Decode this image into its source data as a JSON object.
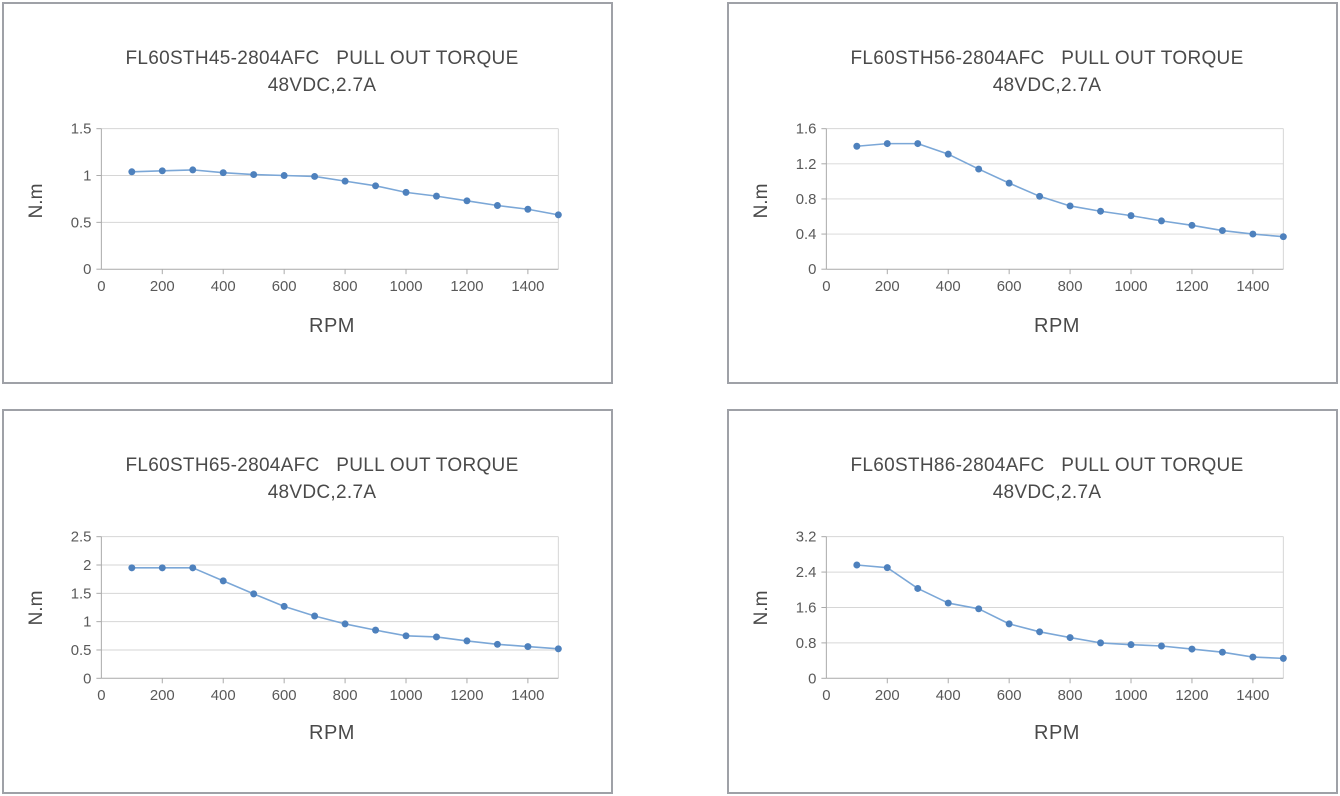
{
  "style": {
    "line_color": "#7BA7D7",
    "marker_color": "#4E81BD",
    "grid_color": "#D6D6D6",
    "axis_color": "#A9A9A9",
    "text_color": "#4a4a4a",
    "panel_border_color": "#9FA1A7",
    "background": "#ffffff"
  },
  "chart_data": [
    {
      "type": "line",
      "title": "FL60STH45-2804AFC   PULL OUT TORQUE",
      "subtitle": "48VDC,2.7A",
      "xlabel": "RPM",
      "ylabel": "N.m",
      "x": [
        100,
        200,
        300,
        400,
        500,
        600,
        700,
        800,
        900,
        1000,
        1100,
        1200,
        1300,
        1400,
        1500
      ],
      "values": [
        1.04,
        1.05,
        1.06,
        1.03,
        1.01,
        1.0,
        0.99,
        0.94,
        0.89,
        0.82,
        0.78,
        0.73,
        0.68,
        0.64,
        0.58
      ],
      "xlim": [
        0,
        1500
      ],
      "ylim": [
        0,
        1.5
      ],
      "yticks": [
        0,
        0.5,
        1,
        1.5
      ],
      "ytick_labels": [
        "0",
        "0.5",
        "1",
        "1.5"
      ],
      "xticks": [
        0,
        200,
        400,
        600,
        800,
        1000,
        1200,
        1400
      ],
      "grid": true,
      "legend": false
    },
    {
      "type": "line",
      "title": "FL60STH56-2804AFC   PULL OUT TORQUE",
      "subtitle": "48VDC,2.7A",
      "xlabel": "RPM",
      "ylabel": "N.m",
      "x": [
        100,
        200,
        300,
        400,
        500,
        600,
        700,
        800,
        900,
        1000,
        1100,
        1200,
        1300,
        1400,
        1500
      ],
      "values": [
        1.4,
        1.43,
        1.43,
        1.31,
        1.14,
        0.98,
        0.83,
        0.72,
        0.66,
        0.61,
        0.55,
        0.5,
        0.44,
        0.4,
        0.37
      ],
      "xlim": [
        0,
        1500
      ],
      "ylim": [
        0,
        1.6
      ],
      "yticks": [
        0,
        0.4,
        0.8,
        1.2,
        1.6
      ],
      "ytick_labels": [
        "0",
        "0.4",
        "0.8",
        "1.2",
        "1.6"
      ],
      "xticks": [
        0,
        200,
        400,
        600,
        800,
        1000,
        1200,
        1400
      ],
      "grid": true,
      "legend": false
    },
    {
      "type": "line",
      "title": "FL60STH65-2804AFC   PULL OUT TORQUE",
      "subtitle": "48VDC,2.7A",
      "xlabel": "RPM",
      "ylabel": "N.m",
      "x": [
        100,
        200,
        300,
        400,
        500,
        600,
        700,
        800,
        900,
        1000,
        1100,
        1200,
        1300,
        1400,
        1500
      ],
      "values": [
        1.95,
        1.95,
        1.95,
        1.72,
        1.49,
        1.27,
        1.1,
        0.96,
        0.85,
        0.75,
        0.73,
        0.66,
        0.6,
        0.56,
        0.52
      ],
      "xlim": [
        0,
        1500
      ],
      "ylim": [
        0,
        2.5
      ],
      "yticks": [
        0,
        0.5,
        1,
        1.5,
        2,
        2.5
      ],
      "ytick_labels": [
        "0",
        "0.5",
        "1",
        "1.5",
        "2",
        "2.5"
      ],
      "xticks": [
        0,
        200,
        400,
        600,
        800,
        1000,
        1200,
        1400
      ],
      "grid": true,
      "legend": false
    },
    {
      "type": "line",
      "title": "FL60STH86-2804AFC   PULL OUT TORQUE",
      "subtitle": "48VDC,2.7A",
      "xlabel": "RPM",
      "ylabel": "N.m",
      "x": [
        100,
        200,
        300,
        400,
        500,
        600,
        700,
        800,
        900,
        1000,
        1100,
        1200,
        1300,
        1400,
        1500
      ],
      "values": [
        2.56,
        2.5,
        2.03,
        1.7,
        1.57,
        1.23,
        1.05,
        0.92,
        0.8,
        0.76,
        0.73,
        0.66,
        0.59,
        0.48,
        0.45
      ],
      "xlim": [
        0,
        1500
      ],
      "ylim": [
        0,
        3.2
      ],
      "yticks": [
        0,
        0.8,
        1.6,
        2.4,
        3.2
      ],
      "ytick_labels": [
        "0",
        "0.8",
        "1.6",
        "2.4",
        "3.2"
      ],
      "xticks": [
        0,
        200,
        400,
        600,
        800,
        1000,
        1200,
        1400
      ],
      "grid": true,
      "legend": false
    }
  ]
}
